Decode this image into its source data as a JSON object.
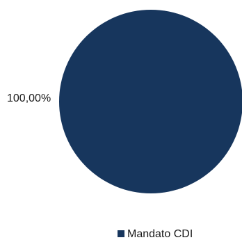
{
  "chart_data": {
    "type": "pie",
    "title": "",
    "slices": [
      {
        "name": "Mandato CDI",
        "value": 100.0,
        "label": "100,00%",
        "color": "#17365d"
      }
    ],
    "legend": {
      "placement": "bottom",
      "entries": [
        "Mandato CDI"
      ]
    }
  }
}
